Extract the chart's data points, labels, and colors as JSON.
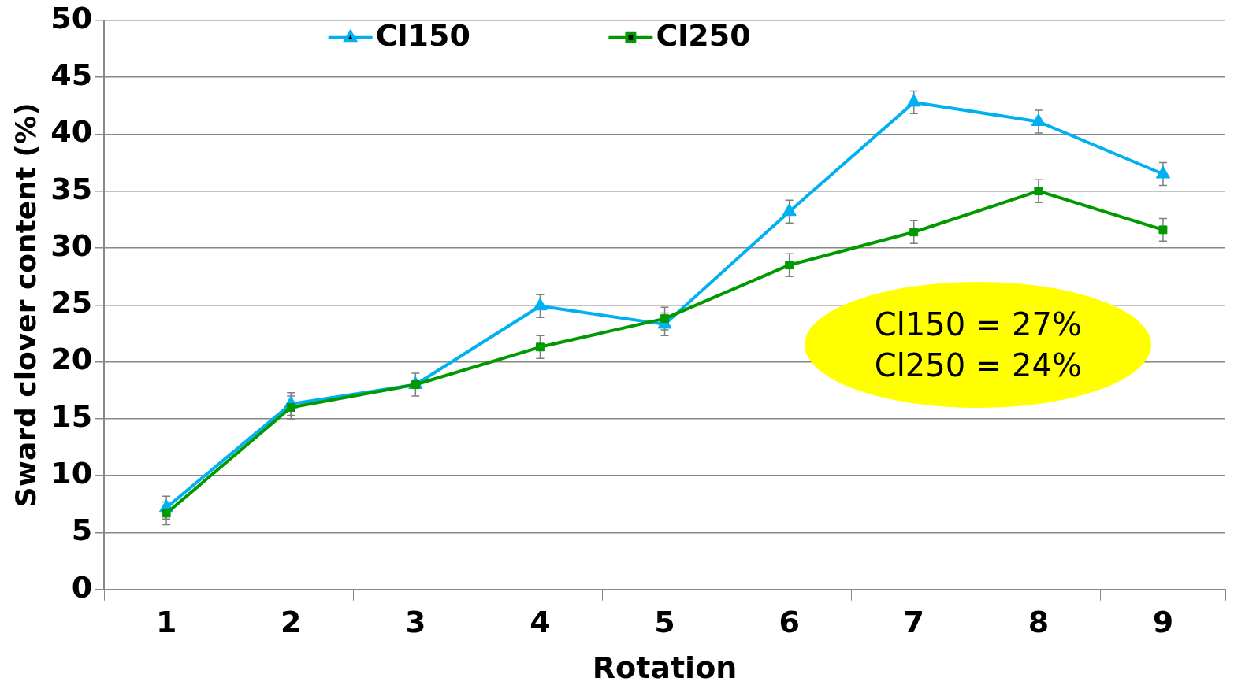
{
  "chart_data": {
    "type": "line",
    "xlabel": "Rotation",
    "ylabel": "Sward clover content (%)",
    "categories": [
      "1",
      "2",
      "3",
      "4",
      "5",
      "6",
      "7",
      "8",
      "9"
    ],
    "series": [
      {
        "name": "Cl150",
        "color": "#00b0f0",
        "marker": "triangle",
        "values": [
          7.2,
          16.3,
          18.0,
          24.9,
          23.3,
          33.2,
          42.8,
          41.1,
          36.5
        ],
        "errors": [
          1,
          1,
          null,
          1,
          1,
          1,
          1,
          1,
          1
        ]
      },
      {
        "name": "Cl250",
        "color": "#009900",
        "marker": "square",
        "values": [
          6.7,
          16.0,
          18.0,
          21.3,
          23.8,
          28.5,
          31.4,
          35.0,
          31.6
        ],
        "errors": [
          1,
          1,
          1,
          1,
          1,
          1,
          1,
          1,
          1
        ]
      }
    ],
    "ylim": [
      0,
      50
    ],
    "yticks": [
      0,
      5,
      10,
      15,
      20,
      25,
      30,
      35,
      40,
      45,
      50
    ],
    "grid": "y",
    "legend": "top",
    "annotations": [
      "Cl150 = 27%\nCl250 = 24%"
    ]
  }
}
